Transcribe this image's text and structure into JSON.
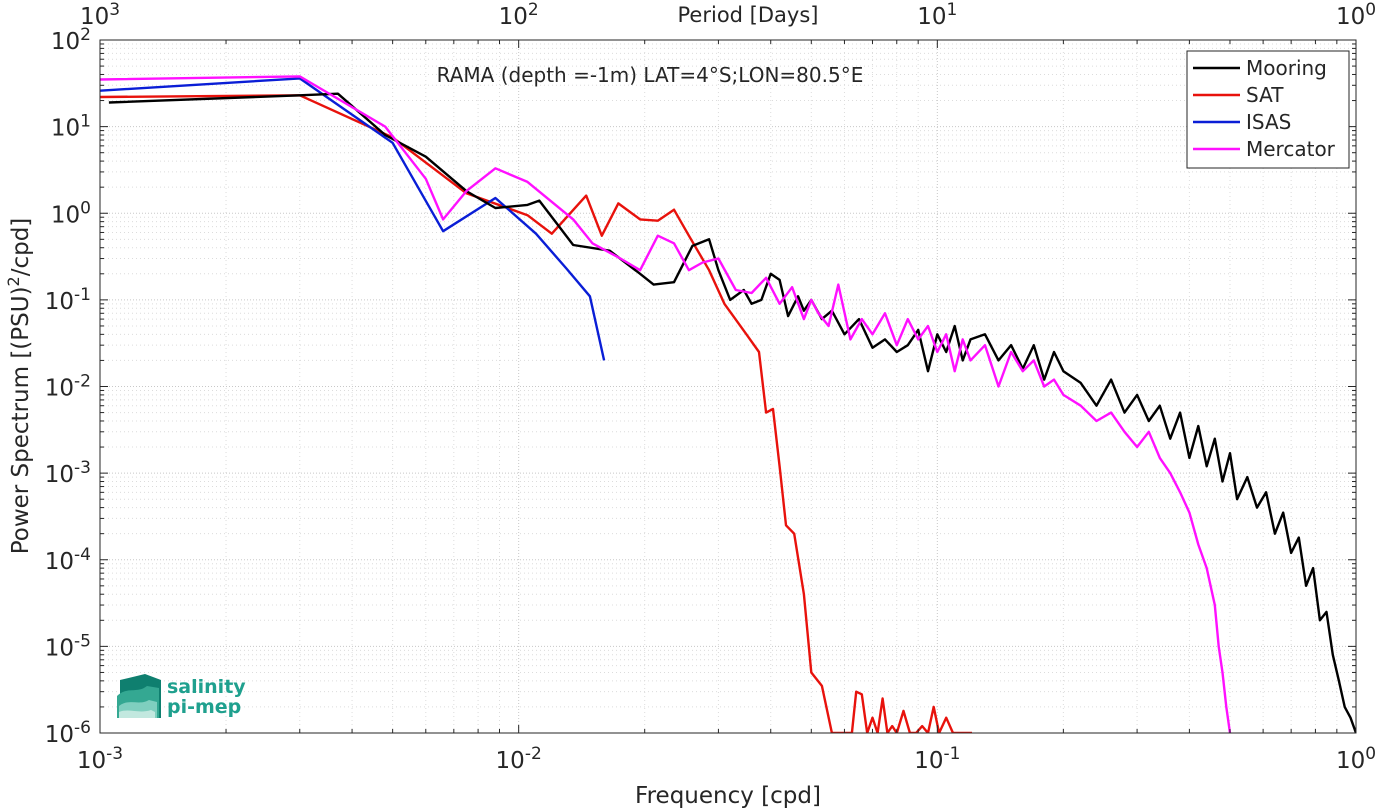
{
  "chart_data": {
    "type": "line",
    "title": "RAMA (depth =-1m) LAT=4°S;LON=80.5°E",
    "xlabel": "Frequency [cpd]",
    "ylabel": "Power Spectrum [(PSU)²/cpd]",
    "x2label": "Period [Days]",
    "x_scale": "log",
    "y_scale": "log",
    "xlim": [
      0.001,
      1
    ],
    "ylim": [
      1e-06,
      100
    ],
    "grid": true,
    "legend_position": "top-right",
    "x_ticks": [
      0.001,
      0.01,
      0.1,
      1
    ],
    "x_tick_labels": [
      {
        "base": "10",
        "exp": "-3"
      },
      {
        "base": "10",
        "exp": "-2"
      },
      {
        "base": "10",
        "exp": "-1"
      },
      {
        "base": "10",
        "exp": "0"
      }
    ],
    "x2_ticks": [
      0.001,
      0.01,
      0.1,
      1
    ],
    "x2_tick_labels": [
      {
        "base": "10",
        "exp": "3"
      },
      {
        "base": "10",
        "exp": "2"
      },
      {
        "base": "10",
        "exp": "1"
      },
      {
        "base": "10",
        "exp": "0"
      }
    ],
    "y_ticks": [
      1e-06,
      1e-05,
      0.0001,
      0.001,
      0.01,
      0.1,
      1,
      10,
      100
    ],
    "y_tick_labels": [
      {
        "base": "10",
        "exp": "-6"
      },
      {
        "base": "10",
        "exp": "-5"
      },
      {
        "base": "10",
        "exp": "-4"
      },
      {
        "base": "10",
        "exp": "-3"
      },
      {
        "base": "10",
        "exp": "-2"
      },
      {
        "base": "10",
        "exp": "-1"
      },
      {
        "base": "10",
        "exp": "0"
      },
      {
        "base": "10",
        "exp": "1"
      },
      {
        "base": "10",
        "exp": "2"
      }
    ],
    "series": [
      {
        "name": "Mooring",
        "color": "#000000",
        "x": [
          0.00105,
          0.003,
          0.0037,
          0.0048,
          0.006,
          0.0075,
          0.0088,
          0.0105,
          0.0112,
          0.0135,
          0.0165,
          0.0195,
          0.021,
          0.0235,
          0.026,
          0.0285,
          0.03,
          0.032,
          0.0345,
          0.036,
          0.038,
          0.04,
          0.042,
          0.044,
          0.0465,
          0.048,
          0.05,
          0.053,
          0.056,
          0.06,
          0.065,
          0.07,
          0.075,
          0.08,
          0.085,
          0.09,
          0.095,
          0.1,
          0.105,
          0.11,
          0.115,
          0.12,
          0.13,
          0.14,
          0.15,
          0.16,
          0.17,
          0.18,
          0.19,
          0.2,
          0.22,
          0.24,
          0.26,
          0.28,
          0.3,
          0.32,
          0.34,
          0.36,
          0.38,
          0.4,
          0.42,
          0.44,
          0.46,
          0.48,
          0.5,
          0.52,
          0.55,
          0.58,
          0.61,
          0.64,
          0.67,
          0.7,
          0.73,
          0.76,
          0.79,
          0.82,
          0.85,
          0.88,
          0.91,
          0.94,
          0.97,
          1.0
        ],
        "y": [
          19,
          23,
          24,
          8,
          4.5,
          1.8,
          1.15,
          1.25,
          1.4,
          0.43,
          0.37,
          0.2,
          0.15,
          0.16,
          0.42,
          0.5,
          0.22,
          0.1,
          0.13,
          0.09,
          0.1,
          0.2,
          0.17,
          0.065,
          0.11,
          0.075,
          0.1,
          0.06,
          0.075,
          0.04,
          0.06,
          0.028,
          0.035,
          0.025,
          0.03,
          0.045,
          0.015,
          0.04,
          0.025,
          0.05,
          0.02,
          0.035,
          0.04,
          0.02,
          0.03,
          0.016,
          0.03,
          0.012,
          0.025,
          0.015,
          0.011,
          0.006,
          0.012,
          0.005,
          0.008,
          0.004,
          0.006,
          0.0025,
          0.005,
          0.0015,
          0.0035,
          0.0012,
          0.0025,
          0.0008,
          0.0017,
          0.0005,
          0.0009,
          0.0004,
          0.0006,
          0.0002,
          0.00035,
          0.00012,
          0.00018,
          5e-05,
          8e-05,
          2e-05,
          2.5e-05,
          8e-06,
          4e-06,
          2e-06,
          1.5e-06,
          1e-06
        ]
      },
      {
        "name": "SAT",
        "color": "#e8120c",
        "x": [
          0.001,
          0.003,
          0.005,
          0.0075,
          0.0105,
          0.012,
          0.0145,
          0.0158,
          0.0173,
          0.0195,
          0.0215,
          0.0235,
          0.0255,
          0.0285,
          0.031,
          0.035,
          0.0375,
          0.039,
          0.0405,
          0.042,
          0.0435,
          0.0455,
          0.048,
          0.05,
          0.053,
          0.056,
          0.058,
          0.06,
          0.0625,
          0.064,
          0.066,
          0.068,
          0.07,
          0.072,
          0.074,
          0.076,
          0.078,
          0.08,
          0.083,
          0.086,
          0.089,
          0.092,
          0.095,
          0.098,
          0.101,
          0.105,
          0.109,
          0.113,
          0.117,
          0.121
        ],
        "y": [
          22,
          23,
          7.5,
          1.7,
          0.95,
          0.58,
          1.6,
          0.55,
          1.3,
          0.85,
          0.82,
          1.1,
          0.55,
          0.22,
          0.09,
          0.04,
          0.025,
          0.005,
          0.0055,
          0.0012,
          0.00025,
          0.0002,
          4e-05,
          5e-06,
          3.5e-06,
          7e-07,
          5e-07,
          6e-07,
          4e-07,
          3e-06,
          2.8e-06,
          5e-07,
          1.5e-06,
          7e-07,
          2.5e-06,
          4e-07,
          1.2e-06,
          6e-07,
          1.8e-06,
          4e-07,
          8e-07,
          1.2e-06,
          5e-07,
          2e-06,
          4e-07,
          1.5e-06,
          6e-07,
          1e-06,
          5e-07,
          8e-07
        ]
      },
      {
        "name": "ISAS",
        "color": "#0a1ed6",
        "x": [
          0.001,
          0.003,
          0.005,
          0.0066,
          0.0088,
          0.011,
          0.013,
          0.0148,
          0.016
        ],
        "y": [
          26,
          36,
          6.5,
          0.62,
          1.5,
          0.58,
          0.23,
          0.11,
          0.02
        ]
      },
      {
        "name": "Mercator",
        "color": "#ff10ff",
        "x": [
          0.001,
          0.003,
          0.0048,
          0.006,
          0.0066,
          0.0075,
          0.0088,
          0.0105,
          0.0115,
          0.0135,
          0.015,
          0.0175,
          0.0195,
          0.0215,
          0.0235,
          0.0255,
          0.0275,
          0.03,
          0.033,
          0.036,
          0.039,
          0.042,
          0.045,
          0.048,
          0.05,
          0.052,
          0.055,
          0.058,
          0.062,
          0.066,
          0.07,
          0.075,
          0.08,
          0.085,
          0.09,
          0.095,
          0.1,
          0.105,
          0.11,
          0.115,
          0.12,
          0.13,
          0.14,
          0.15,
          0.16,
          0.17,
          0.18,
          0.19,
          0.2,
          0.22,
          0.24,
          0.26,
          0.28,
          0.3,
          0.32,
          0.34,
          0.36,
          0.38,
          0.4,
          0.42,
          0.44,
          0.46,
          0.47,
          0.48,
          0.49,
          0.5
        ],
        "y": [
          35,
          38,
          10,
          2.5,
          0.85,
          1.8,
          3.3,
          2.3,
          1.6,
          0.85,
          0.45,
          0.3,
          0.22,
          0.55,
          0.45,
          0.22,
          0.27,
          0.3,
          0.13,
          0.12,
          0.18,
          0.09,
          0.14,
          0.06,
          0.1,
          0.07,
          0.05,
          0.15,
          0.035,
          0.06,
          0.04,
          0.07,
          0.03,
          0.06,
          0.035,
          0.05,
          0.025,
          0.04,
          0.015,
          0.035,
          0.02,
          0.03,
          0.01,
          0.025,
          0.015,
          0.02,
          0.01,
          0.012,
          0.008,
          0.006,
          0.004,
          0.005,
          0.003,
          0.002,
          0.003,
          0.0015,
          0.001,
          0.0006,
          0.00035,
          0.00015,
          8e-05,
          3e-05,
          1e-05,
          5e-06,
          2e-06,
          1e-06
        ]
      }
    ]
  },
  "logo": {
    "line1": "salinity",
    "line2": "pi-mep"
  }
}
